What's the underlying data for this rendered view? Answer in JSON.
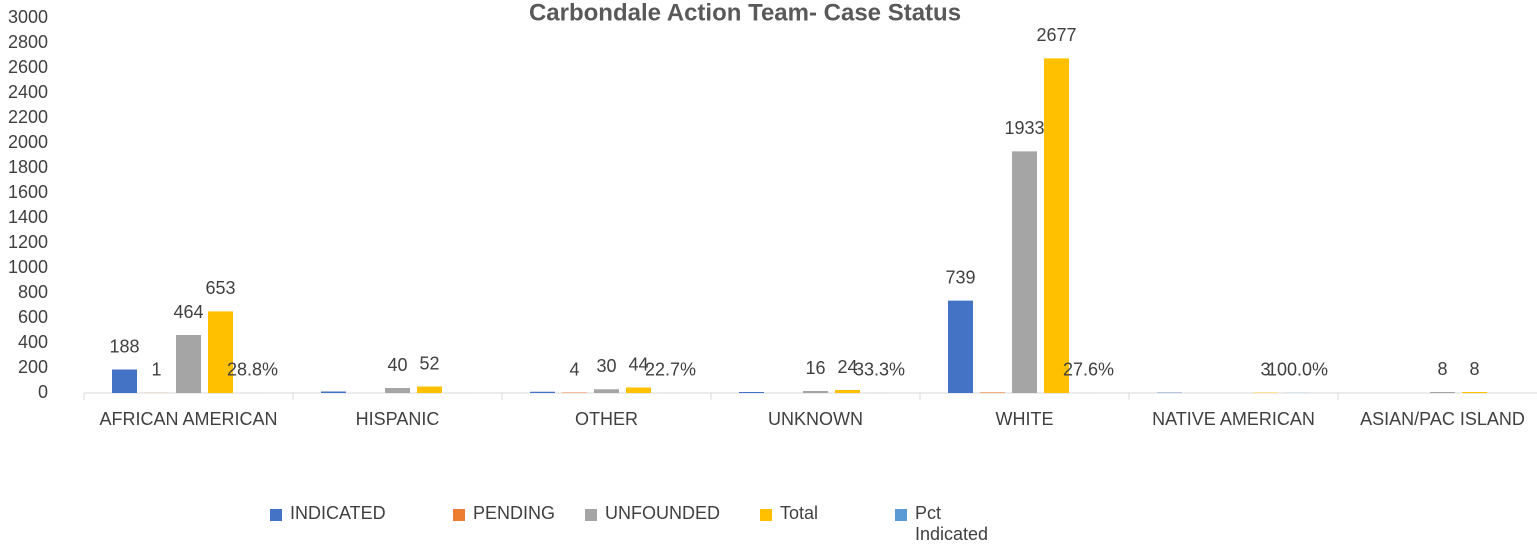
{
  "chart_data": {
    "type": "bar",
    "title": "Carbondale Action Team- Case Status",
    "categories": [
      "AFRICAN AMERICAN",
      "HISPANIC",
      "OTHER",
      "UNKNOWN",
      "WHITE",
      "NATIVE AMERICAN",
      "ASIAN/PAC ISLAND"
    ],
    "series": [
      {
        "name": "INDICATED",
        "color": "#4472c4",
        "values": [
          188,
          12,
          10,
          8,
          739,
          3,
          0
        ],
        "value_labels": [
          "188",
          null,
          null,
          null,
          "739",
          null,
          null
        ]
      },
      {
        "name": "PENDING",
        "color": "#ed7d31",
        "values": [
          1,
          null,
          4,
          null,
          5,
          null,
          null
        ],
        "value_labels": [
          "1",
          null,
          "4",
          null,
          null,
          null,
          null
        ]
      },
      {
        "name": "UNFOUNDED",
        "color": "#a5a5a5",
        "values": [
          464,
          40,
          30,
          16,
          1933,
          null,
          8
        ],
        "value_labels": [
          "464",
          "40",
          "30",
          "16",
          "1933",
          null,
          "8"
        ]
      },
      {
        "name": "Total",
        "color": "#ffc000",
        "values": [
          653,
          52,
          44,
          24,
          2677,
          3,
          8
        ],
        "value_labels": [
          "653",
          "52",
          "44",
          "24",
          "2677",
          "3",
          "8"
        ]
      },
      {
        "name": "Pct Indicated",
        "color": "#5b9bd5",
        "values": [
          0.288,
          0.231,
          0.227,
          0.333,
          0.276,
          1.0,
          0
        ],
        "value_labels": [
          "28.8%",
          null,
          "22.7%",
          "33.3%",
          "27.6%",
          "100.0%",
          null
        ]
      }
    ],
    "ylim": [
      0,
      3000
    ],
    "yticks": [
      0,
      200,
      400,
      600,
      800,
      1000,
      1200,
      1400,
      1600,
      1800,
      2000,
      2200,
      2400,
      2600,
      2800,
      3000
    ],
    "grid": false,
    "legend": "bottom"
  }
}
